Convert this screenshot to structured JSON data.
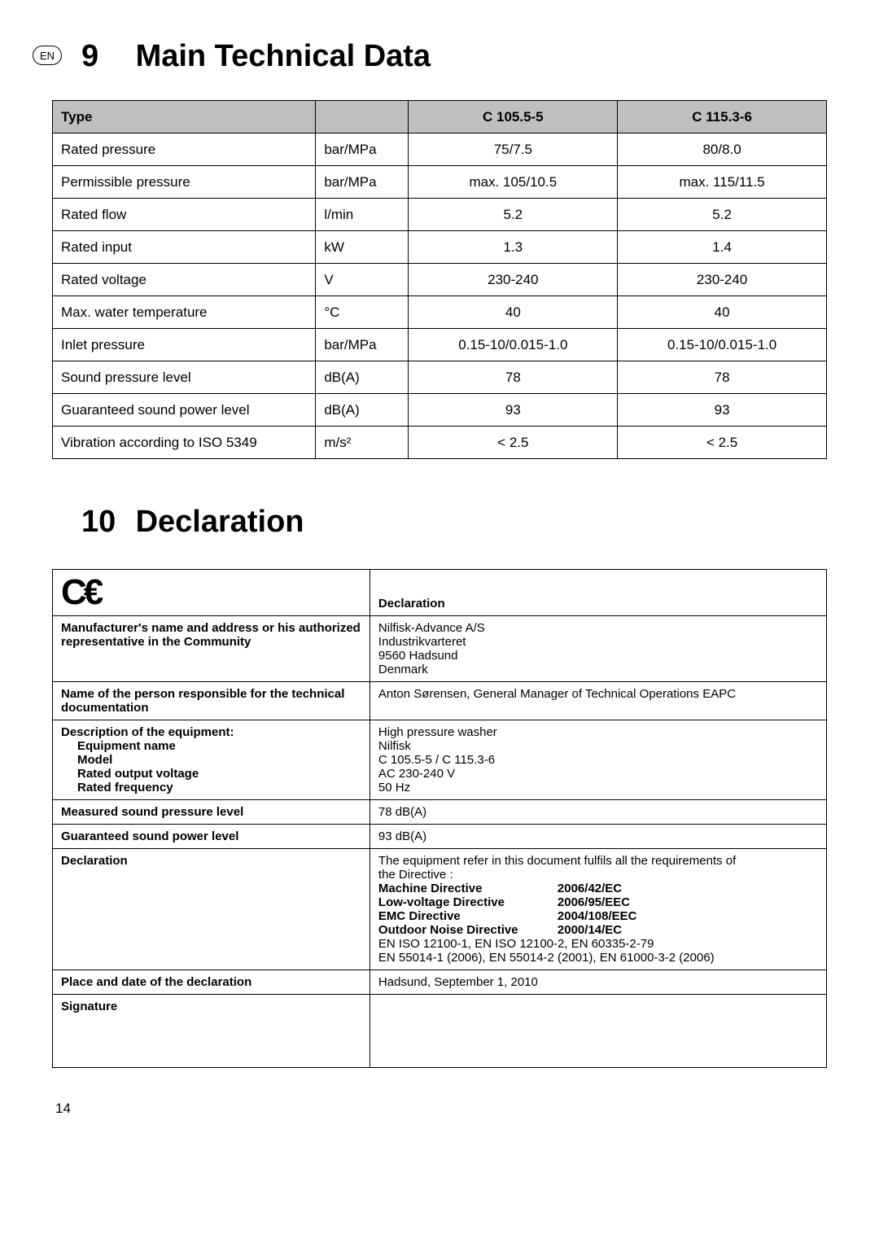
{
  "lang_badge": "EN",
  "section9": {
    "number": "9",
    "title": "Main Technical Data",
    "columns": {
      "type": "Type",
      "unit_blank": "",
      "model_a": "C 105.5-5",
      "model_b": "C 115.3-6"
    },
    "rows": [
      {
        "label": "Rated pressure",
        "unit": "bar/MPa",
        "a": "75/7.5",
        "b": "80/8.0"
      },
      {
        "label": "Permissible pressure",
        "unit": "bar/MPa",
        "a": "max. 105/10.5",
        "b": "max. 115/11.5"
      },
      {
        "label": "Rated flow",
        "unit": "l/min",
        "a": "5.2",
        "b": "5.2"
      },
      {
        "label": "Rated input",
        "unit": "kW",
        "a": "1.3",
        "b": "1.4"
      },
      {
        "label": "Rated voltage",
        "unit": "V",
        "a": "230-240",
        "b": "230-240"
      },
      {
        "label": "Max. water temperature",
        "unit": "°C",
        "a": "40",
        "b": "40"
      },
      {
        "label": "Inlet pressure",
        "unit": "bar/MPa",
        "a": "0.15-10/0.015-1.0",
        "b": "0.15-10/0.015-1.0"
      },
      {
        "label": "Sound pressure level",
        "unit": "dB(A)",
        "a": "78",
        "b": "78"
      },
      {
        "label": "Guaranteed sound power level",
        "unit": "dB(A)",
        "a": "93",
        "b": "93"
      },
      {
        "label": "Vibration according to ISO 5349",
        "unit": "m/s²",
        "a": "< 2.5",
        "b": "< 2.5"
      }
    ]
  },
  "section10": {
    "number": "10",
    "title": "Declaration",
    "ce": "C€",
    "decl_heading": "Declaration",
    "rows": {
      "mfr_label": "Manufacturer's name and address or his authorized representative in the Community",
      "mfr_value_l1": "Nilfisk-Advance A/S",
      "mfr_value_l2": "Industrikvarteret",
      "mfr_value_l3": "9560 Hadsund",
      "mfr_value_l4": "Denmark",
      "person_label": "Name of the person responsible for the technical documentation",
      "person_value": "Anton Sørensen, General Manager of Technical Operations EAPC",
      "equip_label_l1": "Description of the equipment:",
      "equip_label_l2": "Equipment name",
      "equip_label_l3": "Model",
      "equip_label_l4": "Rated output voltage",
      "equip_label_l5": "Rated frequency",
      "equip_value_l1": "High pressure washer",
      "equip_value_l2": "Nilfisk",
      "equip_value_l3": "C 105.5-5 / C 115.3-6",
      "equip_value_l4": "AC 230-240 V",
      "equip_value_l5": "50 Hz",
      "meas_label": "Measured sound pressure level",
      "meas_value": "78 dB(A)",
      "guar_label": "Guaranteed sound power level",
      "guar_value": "93 dB(A)",
      "decl_label": "Declaration",
      "decl_intro_l1": "The equipment refer in this document fulfils all the requirements of",
      "decl_intro_l2": "the Directive :",
      "dir1_name": "Machine Directive",
      "dir1_num": "2006/42/EC",
      "dir2_name": "Low-voltage Directive",
      "dir2_num": "2006/95/EEC",
      "dir3_name": "EMC Directive",
      "dir3_num": "2004/108/EEC",
      "dir4_name": "Outdoor Noise Directive",
      "dir4_num": "2000/14/EC",
      "std_l1": "EN ISO 12100-1, EN ISO 12100-2, EN 60335-2-79",
      "std_l2": "EN 55014-1 (2006), EN 55014-2 (2001), EN 61000-3-2 (2006)",
      "place_label": "Place and date of the declaration",
      "place_value": "Hadsund, September 1, 2010",
      "sig_label": "Signature"
    }
  },
  "page_number": "14",
  "col_widths": {
    "spec_c1_pct": 34,
    "spec_c2_pct": 12,
    "spec_c3_pct": 27,
    "spec_c4_pct": 27,
    "decl_c1_pct": 41,
    "decl_c2_pct": 59
  }
}
